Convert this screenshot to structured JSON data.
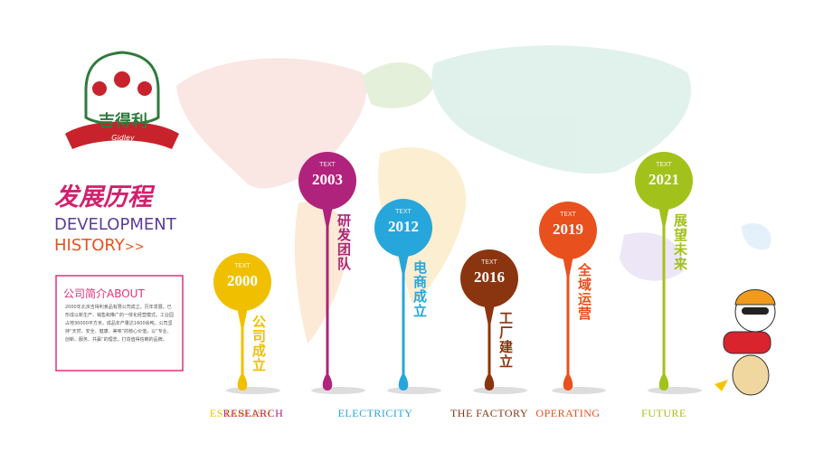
{
  "logo": {
    "name": "吉得利",
    "sub": "Gidley"
  },
  "heading": {
    "title": "发展历程",
    "line1": "DEVELOPMENT",
    "line2": "HISTORY",
    "arrow": ">>"
  },
  "about": {
    "title": "公司简介ABOUT",
    "text": "2000年北京吉得利食品有限公司成立。历年发展，已形成以新生产、销售和推广的一体化经营模式。工业园占地30000平方米，成品年产量达1600余吨。公司坚持“天然、安全、健康、美味”的核心价值，以“专业、创新、服务、共赢”的理念，打造值得信赖的品牌。"
  },
  "milestones": [
    {
      "year": "2000",
      "tag": "TEXT",
      "label": "公司成立",
      "english": "ESTABLISH",
      "color": "#f0c000"
    },
    {
      "year": "2003",
      "tag": "TEXT",
      "label": "研发团队",
      "english": "RESEARCH",
      "color": "#b0237c"
    },
    {
      "year": "2012",
      "tag": "TEXT",
      "label": "电商成立",
      "english": "ELECTRICITY",
      "color": "#27a6db"
    },
    {
      "year": "2016",
      "tag": "TEXT",
      "label": "工厂建立",
      "english": "THE FACTORY",
      "color": "#8a3510"
    },
    {
      "year": "2019",
      "tag": "TEXT",
      "label": "全域运营",
      "english": "OPERATING",
      "color": "#e8501e"
    },
    {
      "year": "2021",
      "tag": "TEXT",
      "label": "展望未来",
      "english": "FUTURE",
      "color": "#a3c11b"
    }
  ]
}
